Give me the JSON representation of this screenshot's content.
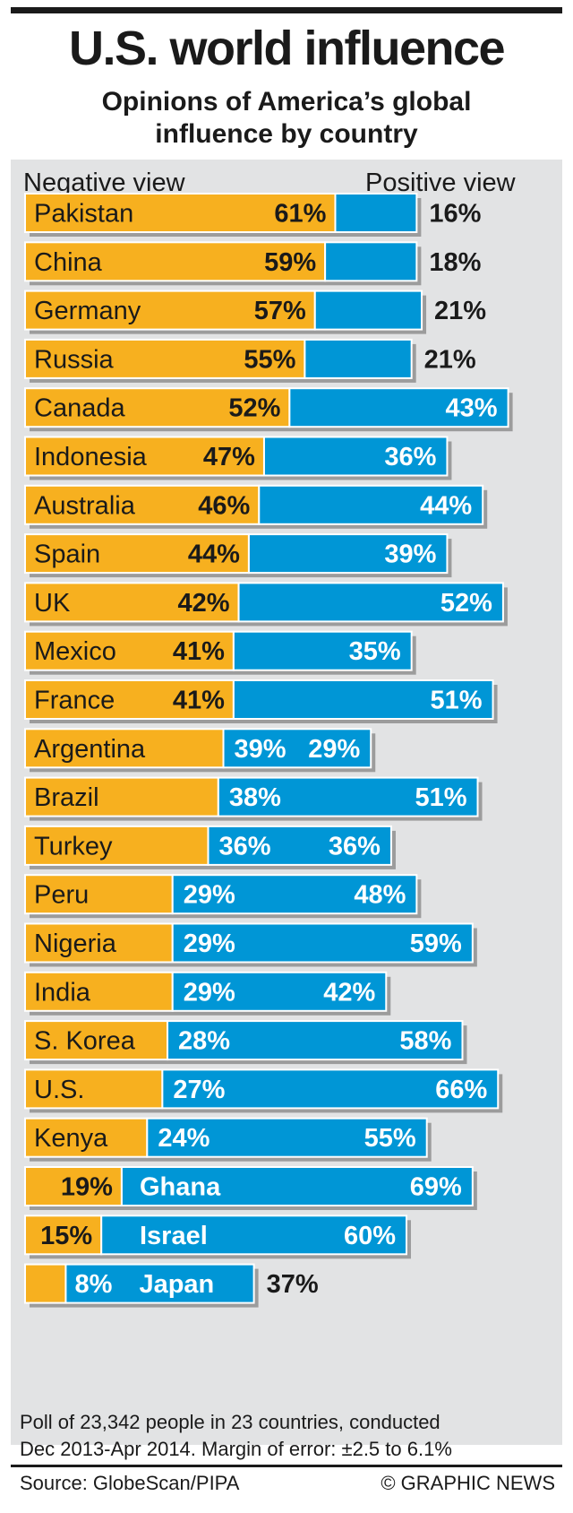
{
  "title": "U.S. world influence",
  "subtitle_line1": "Opinions of America’s global",
  "subtitle_line2": "influence by country",
  "legend": {
    "negative": "Negative view",
    "positive": "Positive view"
  },
  "footnote_line1": "Poll of 23,342 people in 23 countries, conducted",
  "footnote_line2": "Dec 2013-Apr 2014. Margin of error: ±2.5 to 6.1%",
  "source": "Source: GlobeScan/PIPA",
  "credit": "© GRAPHIC NEWS",
  "colors": {
    "negative": "#f7b01f",
    "positive": "#0096d6",
    "panel": "#e2e3e4",
    "text": "#1a1a1a"
  },
  "chart_data": {
    "type": "bar",
    "orientation": "horizontal-stacked",
    "unit": "%",
    "categories": [
      "Pakistan",
      "China",
      "Germany",
      "Russia",
      "Canada",
      "Indonesia",
      "Australia",
      "Spain",
      "UK",
      "Mexico",
      "France",
      "Argentina",
      "Brazil",
      "Turkey",
      "Peru",
      "Nigeria",
      "India",
      "S. Korea",
      "U.S.",
      "Kenya",
      "Ghana",
      "Israel",
      "Japan"
    ],
    "series": [
      {
        "name": "Negative view",
        "values": [
          61,
          59,
          57,
          55,
          52,
          47,
          46,
          44,
          42,
          41,
          41,
          39,
          38,
          36,
          29,
          29,
          29,
          28,
          27,
          24,
          19,
          15,
          8
        ]
      },
      {
        "name": "Positive view",
        "values": [
          16,
          18,
          21,
          21,
          43,
          36,
          44,
          39,
          52,
          35,
          51,
          29,
          51,
          36,
          48,
          59,
          42,
          58,
          66,
          55,
          69,
          60,
          37
        ]
      }
    ]
  }
}
